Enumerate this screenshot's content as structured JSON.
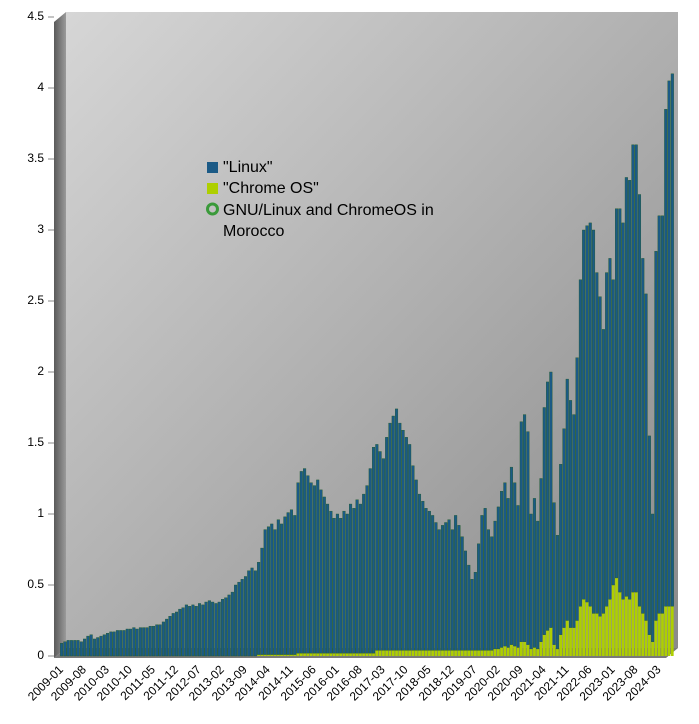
{
  "chart_data": {
    "type": "stacked-bar",
    "title": "GNU/Linux and ChromeOS in Morocco",
    "categories": [
      "2009-01",
      null,
      null,
      null,
      null,
      null,
      null,
      "2009-08",
      null,
      null,
      null,
      null,
      null,
      null,
      "2010-03",
      null,
      null,
      null,
      null,
      null,
      null,
      "2010-10",
      null,
      null,
      null,
      null,
      null,
      null,
      "2011-05",
      null,
      null,
      null,
      null,
      null,
      null,
      "2011-12",
      null,
      null,
      null,
      null,
      null,
      null,
      "2012-07",
      null,
      null,
      null,
      null,
      null,
      null,
      "2013-02",
      null,
      null,
      null,
      null,
      null,
      null,
      "2013-09",
      null,
      null,
      null,
      null,
      null,
      null,
      "2014-04",
      null,
      null,
      null,
      null,
      null,
      null,
      "2014-11",
      null,
      null,
      null,
      null,
      null,
      null,
      "2015-06",
      null,
      null,
      null,
      null,
      null,
      null,
      "2016-01",
      null,
      null,
      null,
      null,
      null,
      null,
      "2016-08",
      null,
      null,
      null,
      null,
      null,
      null,
      "2017-03",
      null,
      null,
      null,
      null,
      null,
      null,
      "2017-10",
      null,
      null,
      null,
      null,
      null,
      null,
      "2018-05",
      null,
      null,
      null,
      null,
      null,
      null,
      "2018-12",
      null,
      null,
      null,
      null,
      null,
      null,
      "2019-07",
      null,
      null,
      null,
      null,
      null,
      null,
      "2020-02",
      null,
      null,
      null,
      null,
      null,
      null,
      "2020-09",
      null,
      null,
      null,
      null,
      null,
      null,
      "2021-04",
      null,
      null,
      null,
      null,
      null,
      null,
      "2021-11",
      null,
      null,
      null,
      null,
      null,
      null,
      "2022-06",
      null,
      null,
      null,
      null,
      null,
      null,
      "2023-01",
      null,
      null,
      null,
      null,
      null,
      null,
      "2023-08",
      null,
      null,
      null,
      null,
      null,
      null,
      "2024-03",
      null,
      null,
      null,
      null
    ],
    "series": [
      {
        "name": "\"Chrome OS\"",
        "color": "#aecf00",
        "values": [
          0,
          0,
          0,
          0,
          0,
          0,
          0,
          0,
          0,
          0,
          0,
          0,
          0,
          0,
          0,
          0,
          0,
          0,
          0,
          0,
          0,
          0,
          0,
          0,
          0,
          0,
          0,
          0,
          0,
          0,
          0,
          0,
          0,
          0,
          0,
          0,
          0,
          0,
          0,
          0,
          0,
          0,
          0,
          0,
          0,
          0,
          0,
          0,
          0,
          0,
          0,
          0,
          0,
          0,
          0,
          0,
          0,
          0,
          0,
          0,
          0.01,
          0.01,
          0.01,
          0.01,
          0.01,
          0.01,
          0.01,
          0.01,
          0.01,
          0.01,
          0.01,
          0.01,
          0.02,
          0.02,
          0.02,
          0.02,
          0.02,
          0.02,
          0.02,
          0.02,
          0.02,
          0.02,
          0.02,
          0.02,
          0.02,
          0.02,
          0.02,
          0.02,
          0.02,
          0.02,
          0.02,
          0.02,
          0.02,
          0.02,
          0.02,
          0.02,
          0.04,
          0.04,
          0.04,
          0.04,
          0.04,
          0.04,
          0.04,
          0.04,
          0.04,
          0.04,
          0.04,
          0.04,
          0.04,
          0.04,
          0.04,
          0.04,
          0.04,
          0.04,
          0.04,
          0.04,
          0.04,
          0.04,
          0.04,
          0.04,
          0.04,
          0.04,
          0.04,
          0.04,
          0.04,
          0.04,
          0.04,
          0.04,
          0.04,
          0.04,
          0.04,
          0.04,
          0.05,
          0.05,
          0.06,
          0.07,
          0.06,
          0.08,
          0.07,
          0.06,
          0.1,
          0.1,
          0.08,
          0.05,
          0.06,
          0.05,
          0.1,
          0.15,
          0.18,
          0.2,
          0.08,
          0.05,
          0.15,
          0.2,
          0.25,
          0.2,
          0.2,
          0.25,
          0.35,
          0.4,
          0.38,
          0.35,
          0.3,
          0.3,
          0.28,
          0.3,
          0.35,
          0.4,
          0.5,
          0.55,
          0.45,
          0.4,
          0.42,
          0.4,
          0.45,
          0.45,
          0.35,
          0.3,
          0.25,
          0.15,
          0.1,
          0.25,
          0.3,
          0.3,
          0.35,
          0.35,
          0.35
        ]
      },
      {
        "name": "\"Linux\"",
        "color": "#1b5a86",
        "values": [
          0.09,
          0.1,
          0.11,
          0.11,
          0.11,
          0.11,
          0.1,
          0.12,
          0.14,
          0.15,
          0.12,
          0.13,
          0.14,
          0.15,
          0.16,
          0.17,
          0.17,
          0.18,
          0.18,
          0.18,
          0.19,
          0.19,
          0.2,
          0.19,
          0.2,
          0.2,
          0.2,
          0.21,
          0.21,
          0.22,
          0.22,
          0.24,
          0.26,
          0.28,
          0.3,
          0.31,
          0.33,
          0.34,
          0.36,
          0.35,
          0.36,
          0.35,
          0.37,
          0.36,
          0.38,
          0.39,
          0.38,
          0.37,
          0.38,
          0.4,
          0.41,
          0.43,
          0.45,
          0.5,
          0.52,
          0.54,
          0.56,
          0.6,
          0.62,
          0.6,
          0.65,
          0.75,
          0.88,
          0.9,
          0.92,
          0.88,
          0.95,
          0.92,
          0.97,
          1.0,
          1.02,
          0.98,
          1.2,
          1.28,
          1.3,
          1.25,
          1.2,
          1.18,
          1.22,
          1.15,
          1.1,
          1.05,
          1.0,
          0.95,
          0.98,
          0.95,
          1.0,
          0.98,
          1.05,
          1.02,
          1.08,
          1.05,
          1.12,
          1.18,
          1.3,
          1.45,
          1.45,
          1.4,
          1.35,
          1.5,
          1.6,
          1.65,
          1.7,
          1.6,
          1.55,
          1.5,
          1.45,
          1.3,
          1.2,
          1.1,
          1.05,
          1.0,
          0.98,
          0.95,
          0.9,
          0.85,
          0.88,
          0.9,
          0.92,
          0.85,
          0.95,
          0.88,
          0.8,
          0.7,
          0.6,
          0.5,
          0.55,
          0.75,
          0.95,
          1.0,
          0.85,
          0.8,
          0.9,
          1.0,
          1.1,
          1.15,
          1.05,
          1.25,
          1.15,
          1.0,
          1.55,
          1.6,
          1.5,
          0.95,
          1.05,
          0.9,
          1.15,
          1.6,
          1.75,
          1.8,
          1.0,
          0.8,
          1.2,
          1.4,
          1.7,
          1.6,
          1.5,
          1.85,
          2.3,
          2.6,
          2.65,
          2.7,
          2.7,
          2.4,
          2.25,
          2.0,
          2.35,
          2.4,
          2.15,
          2.6,
          2.7,
          2.65,
          2.95,
          2.95,
          3.15,
          3.15,
          2.9,
          2.5,
          2.3,
          1.4,
          0.9,
          2.6,
          2.8,
          2.8,
          3.5,
          3.7,
          3.75
        ]
      }
    ],
    "ylim": [
      0,
      4.5
    ],
    "yticks": [
      0,
      0.5,
      1,
      1.5,
      2,
      2.5,
      3,
      3.5,
      4,
      4.5
    ]
  }
}
